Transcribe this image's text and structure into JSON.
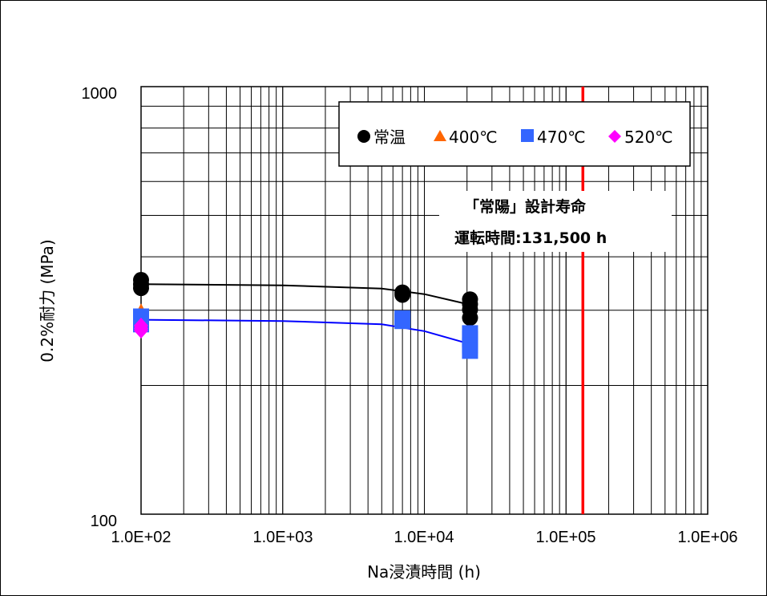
{
  "chart_data": {
    "type": "scatter",
    "x_scale": "log",
    "y_scale": "log",
    "xlim": [
      100,
      1000000
    ],
    "ylim": [
      100,
      1000
    ],
    "xlabel": "Na浸漬時間 (h)",
    "ylabel": "0.2%耐力 (MPa)",
    "x_tick_labels": [
      "1.0E+02",
      "1.0E+03",
      "1.0E+04",
      "1.0E+05",
      "1.0E+06"
    ],
    "y_tick_labels": [
      "100",
      "1000"
    ],
    "grid": true,
    "legend_position": "top-right",
    "series": [
      {
        "name": "常温",
        "marker": "circle",
        "color": "#000000",
        "points": [
          [
            100,
            353
          ],
          [
            100,
            345
          ],
          [
            100,
            338
          ],
          [
            7000,
            330
          ],
          [
            7000,
            326
          ],
          [
            21000,
            318
          ],
          [
            21000,
            310
          ],
          [
            21000,
            301
          ],
          [
            21000,
            288
          ]
        ]
      },
      {
        "name": "400℃",
        "marker": "triangle",
        "color": "#ff6600",
        "points": [
          [
            100,
            298
          ],
          [
            100,
            292
          ]
        ]
      },
      {
        "name": "470℃",
        "marker": "square",
        "color": "#3366ff",
        "points": [
          [
            100,
            290
          ],
          [
            100,
            284
          ],
          [
            100,
            278
          ],
          [
            7000,
            287
          ],
          [
            7000,
            283
          ],
          [
            21000,
            265
          ],
          [
            21000,
            257
          ],
          [
            21000,
            248
          ],
          [
            21000,
            241
          ]
        ]
      },
      {
        "name": "520℃",
        "marker": "diamond",
        "color": "#ff00ff",
        "points": [
          [
            100,
            276
          ],
          [
            100,
            272
          ],
          [
            100,
            269
          ]
        ]
      }
    ],
    "fit_lines": [
      {
        "color": "#000000",
        "points": [
          [
            100,
            345
          ],
          [
            1000,
            343
          ],
          [
            5000,
            337
          ],
          [
            10000,
            327
          ],
          [
            21000,
            309
          ]
        ]
      },
      {
        "color": "#0000ff",
        "points": [
          [
            100,
            285
          ],
          [
            1000,
            283
          ],
          [
            5000,
            278
          ],
          [
            10000,
            268
          ],
          [
            21000,
            250
          ]
        ]
      }
    ],
    "reference_line": {
      "x": 131500,
      "color": "#ff0000"
    },
    "annotation": {
      "line1": "「常陽」設計寿命",
      "line2": "運転時間:131,500 h"
    }
  }
}
